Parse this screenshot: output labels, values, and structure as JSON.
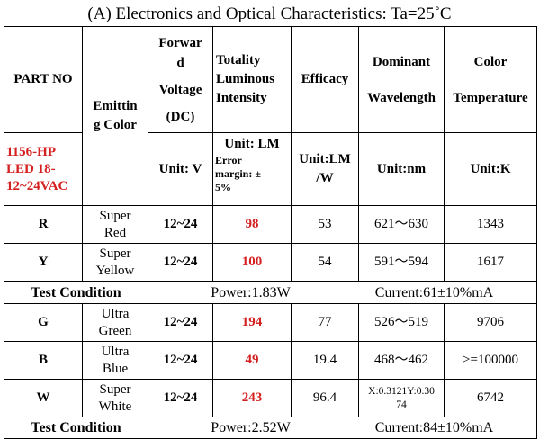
{
  "title": "(A) Electronics and Optical Characteristics: Ta=25˚C",
  "header": {
    "part_no": "PART NO",
    "part_value_line1": "1156-HP",
    "part_value_line2": "LED 18-",
    "part_value_line3": "12~24VAC",
    "emit_line1": "Emittin",
    "emit_line2": "g Color",
    "fv_line1": "Forwar",
    "fv_line2": "d",
    "fv_line3": "Voltage",
    "fv_line4": "(DC)",
    "tli_line1": "Totality",
    "tli_line2": "Luminous",
    "tli_line3": "Intensity",
    "efficacy": "Efficacy",
    "dw_line1": "Dominant",
    "dw_line2": "Wavelength",
    "ct_line1": "Color",
    "ct_line2": "Temperature",
    "unit_v": "Unit: V",
    "unit_lm": "Unit: LM",
    "err_line1": "Error",
    "err_line2": "margin: ±",
    "err_line3": "5%",
    "unit_lmw_line1": "Unit:LM",
    "unit_lmw_line2": "/W",
    "unit_nm": "Unit:nm",
    "unit_k": "Unit:K"
  },
  "group1": [
    {
      "code": "R",
      "color1": "Super",
      "color2": "Red",
      "voltage": "12~24",
      "lumen": "98",
      "efficacy": "53",
      "wavelength": "621～630",
      "temp": "1343"
    },
    {
      "code": "Y",
      "color1": "Super",
      "color2": "Yellow",
      "voltage": "12~24",
      "lumen": "100",
      "efficacy": "54",
      "wavelength": "591～594",
      "temp": "1617"
    }
  ],
  "test1": {
    "label": "Test Condition",
    "power": "Power:1.83W",
    "current": "Current:61±10%mA"
  },
  "group2": [
    {
      "code": "G",
      "color1": "Ultra",
      "color2": "Green",
      "voltage": "12~24",
      "lumen": "194",
      "efficacy": "77",
      "wavelength": "526～519",
      "temp": "9706"
    },
    {
      "code": "B",
      "color1": "Ultra",
      "color2": "Blue",
      "voltage": "12~24",
      "lumen": "49",
      "efficacy": "19.4",
      "wavelength": "468～462",
      "temp": ">=100000"
    },
    {
      "code": "W",
      "color1": "Super",
      "color2": "White",
      "voltage": "12~24",
      "lumen": "243",
      "efficacy": "96.4",
      "wavelength_l1": "X:0.3121Y:0.30",
      "wavelength_l2": "74",
      "temp": "6742"
    }
  ],
  "test2": {
    "label": "Test Condition",
    "power": "Power:2.52W",
    "current": "Current:84±10%mA"
  }
}
